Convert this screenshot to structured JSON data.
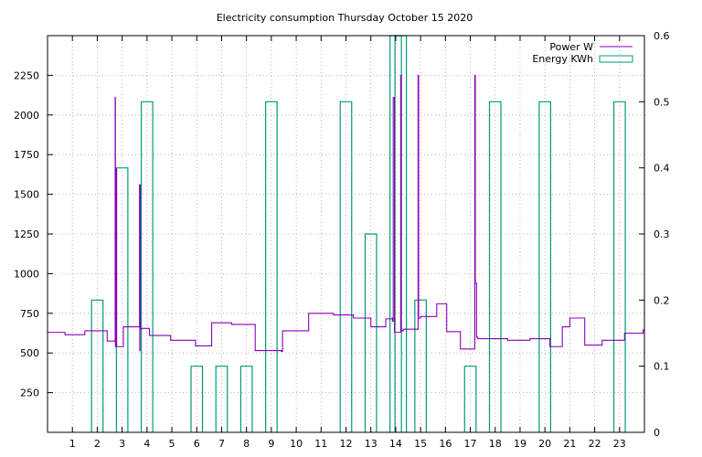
{
  "chart_data": {
    "type": "line",
    "title": "Electricity consumption Thursday October 15 2020",
    "xlabel": "",
    "ylabel": "",
    "y2label": "",
    "xlim": [
      0,
      24
    ],
    "ylim": [
      0,
      2500
    ],
    "y2lim": [
      0,
      0.6
    ],
    "x_ticks": [
      1,
      2,
      3,
      4,
      5,
      6,
      7,
      8,
      9,
      10,
      11,
      12,
      13,
      14,
      15,
      16,
      17,
      18,
      19,
      20,
      21,
      22,
      23
    ],
    "y_ticks": [
      250,
      500,
      750,
      1000,
      1250,
      1500,
      1750,
      2000,
      2250
    ],
    "y2_ticks": [
      0,
      0.1,
      0.2,
      0.3,
      0.4,
      0.5,
      0.6
    ],
    "grid": true,
    "legend_position": "top-right",
    "series": [
      {
        "name": "Power W",
        "axis": "left",
        "color": "#8b00b4",
        "style": "steps",
        "x": [
          0,
          0.7,
          1.5,
          2.4,
          2.72,
          2.73,
          2.74,
          2.78,
          3.05,
          3.7,
          3.71,
          3.72,
          3.73,
          3.78,
          4.1,
          4.95,
          5.95,
          6.6,
          7.4,
          8.35,
          9.4,
          9.45,
          10.5,
          11.5,
          12.3,
          13.0,
          13.6,
          13.86,
          13.87,
          13.9,
          13.95,
          14.2,
          14.22,
          14.3,
          14.9,
          14.92,
          15.0,
          15.65,
          16.05,
          16.6,
          17.18,
          17.2,
          17.25,
          17.3,
          17.45,
          18.5,
          19.4,
          19.9,
          20.2,
          20.7,
          21.0,
          21.6,
          22.3,
          23.2,
          23.95
        ],
        "values": [
          630,
          615,
          640,
          575,
          2110,
          540,
          1660,
          540,
          665,
          1560,
          515,
          1560,
          650,
          655,
          610,
          580,
          545,
          690,
          680,
          515,
          510,
          640,
          750,
          740,
          720,
          665,
          715,
          720,
          700,
          2110,
          630,
          2250,
          640,
          650,
          2250,
          720,
          730,
          810,
          635,
          525,
          2250,
          940,
          600,
          590,
          590,
          580,
          590,
          590,
          540,
          665,
          720,
          550,
          580,
          625,
          645
        ]
      },
      {
        "name": "Energy KWh",
        "axis": "right",
        "color": "#009a7a",
        "style": "boxes",
        "x": [
          2,
          3,
          4,
          6,
          7,
          8,
          9,
          12,
          13,
          14,
          15,
          17,
          18,
          20,
          23
        ],
        "values": [
          0.2,
          0.4,
          0.5,
          0.1,
          0.1,
          0.1,
          0.5,
          0.5,
          0.3,
          0.6,
          0.2,
          0.1,
          0.5,
          0.5,
          0.5
        ]
      },
      {
        "name": "Energy KWh",
        "axis": "right",
        "color": "#009a7a",
        "style": "boxes-clipped",
        "x": [
          14.2
        ],
        "values": [
          0.6
        ]
      }
    ]
  }
}
